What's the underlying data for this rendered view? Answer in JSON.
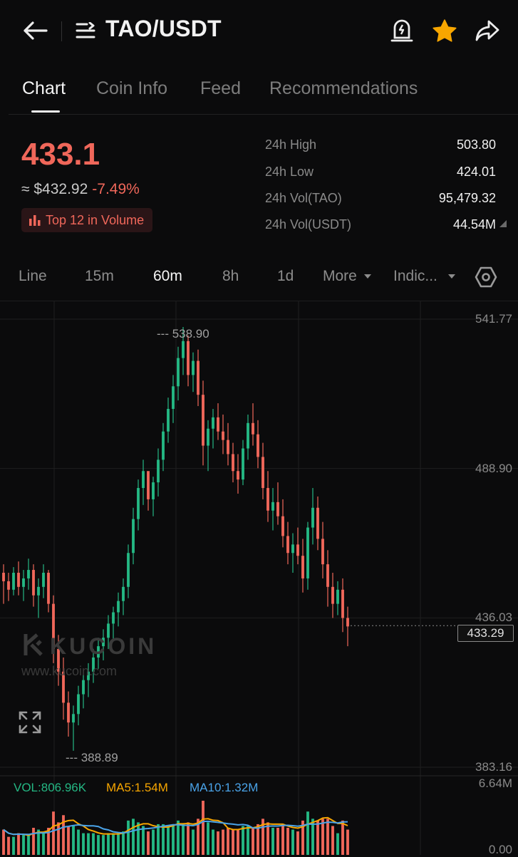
{
  "header": {
    "title": "TAO/USDT",
    "icons": [
      "back-arrow-icon",
      "list-menu-icon",
      "price-alert-icon",
      "favorite-star-icon",
      "share-icon"
    ],
    "colors": {
      "star": "#f7a600"
    }
  },
  "tabs": [
    {
      "label": "Chart",
      "active": true
    },
    {
      "label": "Coin Info",
      "active": false
    },
    {
      "label": "Feed",
      "active": false
    },
    {
      "label": "Recommendations",
      "active": false
    }
  ],
  "ticker": {
    "last_price": "433.1",
    "approx_usd": "≈ $432.92",
    "change_pct": "-7.49%",
    "volume_badge": "Top 12 in Volume",
    "stats": [
      {
        "label": "24h High",
        "value": "503.80"
      },
      {
        "label": "24h Low",
        "value": "424.01"
      },
      {
        "label": "24h Vol(TAO)",
        "value": "95,479.32"
      },
      {
        "label": "24h Vol(USDT)",
        "value": "44.54M"
      }
    ],
    "colors": {
      "down": "#f0675a",
      "up": "#24b884"
    }
  },
  "intervals": {
    "items": [
      {
        "label": "Line",
        "active": false
      },
      {
        "label": "15m",
        "active": false
      },
      {
        "label": "60m",
        "active": true
      },
      {
        "label": "8h",
        "active": false
      },
      {
        "label": "1d",
        "active": false
      }
    ],
    "more_label": "More",
    "indicators_label": "Indic..."
  },
  "chart": {
    "price_axis": [
      "541.77",
      "488.90",
      "436.03",
      "383.16"
    ],
    "current_price_tag": "433.29",
    "high_annotation": "538.90",
    "low_annotation": "388.89",
    "watermark": "KUCOIN",
    "watermark_url": "www.kucoin.com",
    "volume_axis": [
      "6.64M",
      "0.00"
    ],
    "vol_legend": {
      "vol": "VOL:806.96K",
      "ma5": "MA5:1.54M",
      "ma10": "MA10:1.32M"
    }
  },
  "chart_data": {
    "type": "candlestick",
    "interval": "60m",
    "y_range": [
      383.16,
      541.77
    ],
    "y_ticks": [
      541.77,
      488.9,
      436.03,
      383.16
    ],
    "candles": [
      [
        452,
        455,
        441,
        449
      ],
      [
        449,
        452,
        442,
        446
      ],
      [
        446,
        454,
        444,
        452
      ],
      [
        452,
        456,
        444,
        447
      ],
      [
        447,
        453,
        442,
        450
      ],
      [
        450,
        457,
        446,
        453
      ],
      [
        453,
        455,
        440,
        444
      ],
      [
        444,
        450,
        436,
        447
      ],
      [
        447,
        455,
        443,
        452
      ],
      [
        452,
        453,
        438,
        441
      ],
      [
        441,
        444,
        420,
        425
      ],
      [
        425,
        430,
        412,
        417
      ],
      [
        417,
        422,
        400,
        406
      ],
      [
        406,
        410,
        394,
        399
      ],
      [
        399,
        405,
        389,
        402
      ],
      [
        402,
        412,
        398,
        409
      ],
      [
        409,
        416,
        404,
        414
      ],
      [
        414,
        420,
        408,
        417
      ],
      [
        417,
        425,
        413,
        422
      ],
      [
        422,
        429,
        418,
        426
      ],
      [
        426,
        432,
        421,
        429
      ],
      [
        429,
        437,
        425,
        434
      ],
      [
        434,
        440,
        428,
        438
      ],
      [
        438,
        445,
        433,
        442
      ],
      [
        442,
        450,
        437,
        447
      ],
      [
        447,
        462,
        443,
        459
      ],
      [
        459,
        475,
        455,
        471
      ],
      [
        471,
        485,
        467,
        482
      ],
      [
        482,
        492,
        476,
        488
      ],
      [
        488,
        487,
        474,
        478
      ],
      [
        478,
        486,
        472,
        484
      ],
      [
        484,
        496,
        479,
        492
      ],
      [
        492,
        505,
        488,
        502
      ],
      [
        502,
        514,
        498,
        510
      ],
      [
        510,
        522,
        505,
        518
      ],
      [
        518,
        532,
        513,
        528
      ],
      [
        528,
        539,
        522,
        534
      ],
      [
        534,
        536,
        518,
        522
      ],
      [
        522,
        530,
        516,
        527
      ],
      [
        527,
        531,
        511,
        515
      ],
      [
        515,
        520,
        490,
        497
      ],
      [
        497,
        506,
        488,
        503
      ],
      [
        503,
        510,
        496,
        507
      ],
      [
        507,
        512,
        499,
        502
      ],
      [
        502,
        508,
        494,
        499
      ],
      [
        499,
        505,
        490,
        494
      ],
      [
        494,
        498,
        484,
        488
      ],
      [
        488,
        494,
        480,
        485
      ],
      [
        485,
        499,
        483,
        496
      ],
      [
        496,
        508,
        492,
        505
      ],
      [
        505,
        512,
        497,
        501
      ],
      [
        501,
        506,
        489,
        493
      ],
      [
        493,
        498,
        478,
        482
      ],
      [
        482,
        488,
        470,
        474
      ],
      [
        474,
        482,
        467,
        477
      ],
      [
        477,
        484,
        469,
        472
      ],
      [
        472,
        478,
        461,
        465
      ],
      [
        465,
        470,
        455,
        459
      ],
      [
        459,
        466,
        452,
        462
      ],
      [
        462,
        468,
        455,
        458
      ],
      [
        458,
        464,
        445,
        450
      ],
      [
        450,
        470,
        446,
        468
      ],
      [
        468,
        482,
        462,
        475
      ],
      [
        475,
        479,
        460,
        464
      ],
      [
        464,
        470,
        450,
        455
      ],
      [
        455,
        460,
        440,
        447
      ],
      [
        447,
        452,
        436,
        441
      ],
      [
        441,
        449,
        437,
        446
      ],
      [
        446,
        450,
        431,
        436
      ],
      [
        436,
        440,
        426,
        433
      ]
    ]
  }
}
